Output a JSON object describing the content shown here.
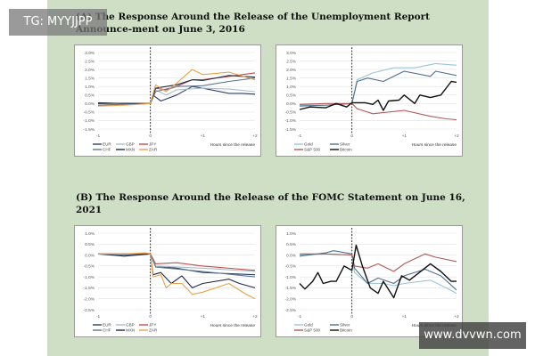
{
  "panel_a": {
    "title": "(A) The Response Around the Release of the Unemployment Report Announce-ment on June 3, 2016"
  },
  "panel_b": {
    "title": "(B) The Response Around the Release of the FOMC Statement on June 16, 2021"
  },
  "watermarks": {
    "top_left": "TG: MYYJJPP",
    "bottom_right": "www.dvvwn.com"
  },
  "chart_data": [
    {
      "id": "a-currencies",
      "type": "line",
      "xlabel": "Hours since the release",
      "xticks": [
        -1,
        0,
        1,
        2
      ],
      "xtick_labels": [
        "-1",
        "0",
        "+1",
        "+2"
      ],
      "ylim": [
        -1.5,
        3.0
      ],
      "yticks": [
        "3.0%",
        "2.5%",
        "2.0%",
        "1.5%",
        "1.0%",
        "0.5%",
        "0.0%",
        "-0.5%",
        "-1.0%",
        "-1.5%"
      ],
      "event_line_x": 0,
      "grid": true,
      "legend": "bottom-left",
      "series": [
        {
          "name": "EUR",
          "color": "#2b3f66",
          "points": [
            [
              -1,
              0.05
            ],
            [
              -0.5,
              0
            ],
            [
              0,
              0
            ],
            [
              0.05,
              0.5
            ],
            [
              0.2,
              0.15
            ],
            [
              0.5,
              0.5
            ],
            [
              0.8,
              1.0
            ],
            [
              1.0,
              0.9
            ],
            [
              1.5,
              0.6
            ],
            [
              1.75,
              0.6
            ],
            [
              2,
              0.55
            ]
          ]
        },
        {
          "name": "GBP",
          "color": "#a9bccc",
          "points": [
            [
              -1,
              -0.1
            ],
            [
              -0.5,
              -0.05
            ],
            [
              0,
              0
            ],
            [
              0.1,
              0.8
            ],
            [
              0.3,
              0.5
            ],
            [
              0.5,
              0.8
            ],
            [
              1.0,
              0.9
            ],
            [
              1.5,
              0.85
            ],
            [
              2,
              0.7
            ]
          ]
        },
        {
          "name": "JPY",
          "color": "#c0504d",
          "points": [
            [
              -1,
              -0.1
            ],
            [
              -0.5,
              -0.05
            ],
            [
              0,
              0
            ],
            [
              0.1,
              0.9
            ],
            [
              0.3,
              0.8
            ],
            [
              0.5,
              1.0
            ],
            [
              0.8,
              1.4
            ],
            [
              1.0,
              1.4
            ],
            [
              1.5,
              1.6
            ],
            [
              2,
              1.8
            ]
          ]
        },
        {
          "name": "CHF",
          "color": "#5f7890",
          "points": [
            [
              -1,
              -0.1
            ],
            [
              -0.5,
              -0.05
            ],
            [
              0,
              0
            ],
            [
              0.1,
              0.7
            ],
            [
              0.5,
              1.0
            ],
            [
              1.0,
              1.05
            ],
            [
              1.5,
              1.3
            ],
            [
              2,
              1.5
            ]
          ]
        },
        {
          "name": "MXN",
          "color": "#1f2a44",
          "points": [
            [
              -1,
              0
            ],
            [
              -0.5,
              0.02
            ],
            [
              0,
              0
            ],
            [
              0.1,
              0.9
            ],
            [
              0.5,
              1.1
            ],
            [
              0.8,
              1.4
            ],
            [
              1.0,
              1.35
            ],
            [
              1.5,
              1.65
            ],
            [
              2,
              1.55
            ]
          ]
        },
        {
          "name": "ZAR",
          "color": "#e8a24a",
          "points": [
            [
              -1,
              -0.15
            ],
            [
              -0.5,
              -0.1
            ],
            [
              0,
              0
            ],
            [
              0.1,
              1.1
            ],
            [
              0.3,
              0.7
            ],
            [
              0.5,
              1.2
            ],
            [
              0.8,
              2.0
            ],
            [
              1.0,
              1.7
            ],
            [
              1.5,
              1.85
            ],
            [
              2,
              1.4
            ]
          ]
        }
      ]
    },
    {
      "id": "a-assets",
      "type": "line",
      "xlabel": "Hours since the release",
      "xticks": [
        -1,
        0,
        1,
        2
      ],
      "xtick_labels": [
        "-1",
        "0",
        "+1",
        "+2"
      ],
      "ylim": [
        -1.5,
        3.0
      ],
      "yticks": [
        "3.0%",
        "2.5%",
        "2.0%",
        "1.5%",
        "1.0%",
        "0.5%",
        "0.0%",
        "-0.5%",
        "-1.0%",
        "-1.5%"
      ],
      "event_line_x": 0,
      "grid": true,
      "legend": "bottom-left",
      "series": [
        {
          "name": "Gold",
          "color": "#9cc3d8",
          "points": [
            [
              -1,
              -0.1
            ],
            [
              -0.5,
              -0.1
            ],
            [
              0,
              0
            ],
            [
              0.1,
              1.4
            ],
            [
              0.4,
              1.8
            ],
            [
              0.8,
              2.1
            ],
            [
              1.2,
              2.1
            ],
            [
              1.6,
              2.35
            ],
            [
              2,
              2.25
            ]
          ]
        },
        {
          "name": "Silver",
          "color": "#4f6f8f",
          "points": [
            [
              -1,
              -0.15
            ],
            [
              -0.5,
              -0.1
            ],
            [
              0,
              0
            ],
            [
              0.1,
              1.3
            ],
            [
              0.3,
              1.5
            ],
            [
              0.6,
              1.3
            ],
            [
              0.8,
              1.6
            ],
            [
              1.0,
              1.9
            ],
            [
              1.5,
              1.6
            ],
            [
              1.6,
              1.9
            ],
            [
              2,
              1.65
            ]
          ]
        },
        {
          "name": "S&P 500",
          "color": "#b05a5a",
          "points": [
            [
              -1,
              -0.05
            ],
            [
              -0.5,
              0
            ],
            [
              0,
              0
            ],
            [
              0.1,
              -0.3
            ],
            [
              0.4,
              -0.6
            ],
            [
              1.0,
              -0.4
            ],
            [
              1.5,
              -0.75
            ],
            [
              1.8,
              -0.9
            ],
            [
              2,
              -0.95
            ]
          ]
        },
        {
          "name": "Bitcoin",
          "color": "#111111",
          "points": [
            [
              -1,
              -0.35
            ],
            [
              -0.8,
              -0.2
            ],
            [
              -0.5,
              -0.25
            ],
            [
              -0.3,
              0
            ],
            [
              -0.1,
              -0.2
            ],
            [
              0,
              0.05
            ],
            [
              0.25,
              0.05
            ],
            [
              0.4,
              -0.05
            ],
            [
              0.5,
              0.2
            ],
            [
              0.6,
              -0.4
            ],
            [
              0.7,
              0.15
            ],
            [
              0.9,
              0.2
            ],
            [
              1.0,
              0.5
            ],
            [
              1.2,
              0
            ],
            [
              1.3,
              0.5
            ],
            [
              1.5,
              0.35
            ],
            [
              1.7,
              0.5
            ],
            [
              1.9,
              1.3
            ],
            [
              2,
              1.25
            ]
          ]
        }
      ]
    },
    {
      "id": "b-currencies",
      "type": "line",
      "xlabel": "Hours since the release",
      "xticks": [
        -1,
        0,
        1,
        2
      ],
      "xtick_labels": [
        "-1",
        "0",
        "+1",
        "+2"
      ],
      "ylim": [
        -2.5,
        1.0
      ],
      "yticks": [
        "1.0%",
        "0.5%",
        "0.0%",
        "-0.5%",
        "-1.0%",
        "-1.5%",
        "-2.0%",
        "-2.5%"
      ],
      "event_line_x": 0,
      "grid": true,
      "legend": "bottom-left",
      "series": [
        {
          "name": "EUR",
          "color": "#2b3f66",
          "points": [
            [
              -1,
              0.05
            ],
            [
              -0.5,
              0.05
            ],
            [
              0,
              0.05
            ],
            [
              0.1,
              -0.5
            ],
            [
              0.5,
              -0.6
            ],
            [
              1.0,
              -0.8
            ],
            [
              2,
              -0.9
            ]
          ]
        },
        {
          "name": "GBP",
          "color": "#a9bccc",
          "points": [
            [
              -1,
              0.05
            ],
            [
              -0.5,
              0.05
            ],
            [
              0,
              0.05
            ],
            [
              0.1,
              -0.5
            ],
            [
              1.0,
              -0.6
            ],
            [
              2,
              -0.75
            ]
          ]
        },
        {
          "name": "JPY",
          "color": "#c0504d",
          "points": [
            [
              -1,
              0.05
            ],
            [
              -0.5,
              0.05
            ],
            [
              0,
              0.05
            ],
            [
              0.1,
              -0.4
            ],
            [
              0.5,
              -0.35
            ],
            [
              1.0,
              -0.5
            ],
            [
              2,
              -0.7
            ]
          ]
        },
        {
          "name": "CHF",
          "color": "#5f7890",
          "points": [
            [
              -1,
              0.05
            ],
            [
              -0.5,
              0
            ],
            [
              0,
              0.05
            ],
            [
              0.1,
              -0.55
            ],
            [
              1.0,
              -0.75
            ],
            [
              2,
              -1.0
            ]
          ]
        },
        {
          "name": "MXN",
          "color": "#1f2a44",
          "points": [
            [
              -1,
              0.05
            ],
            [
              -0.5,
              -0.05
            ],
            [
              0,
              0.05
            ],
            [
              0.05,
              -0.9
            ],
            [
              0.2,
              -0.8
            ],
            [
              0.4,
              -1.3
            ],
            [
              0.6,
              -0.95
            ],
            [
              0.8,
              -1.5
            ],
            [
              1.0,
              -1.3
            ],
            [
              1.5,
              -1.1
            ],
            [
              1.7,
              -1.3
            ],
            [
              2,
              -1.5
            ]
          ]
        },
        {
          "name": "ZAR",
          "color": "#e8a24a",
          "points": [
            [
              -1,
              0.05
            ],
            [
              -0.5,
              0.05
            ],
            [
              -0.1,
              0.1
            ],
            [
              0,
              0.05
            ],
            [
              0.05,
              -1.0
            ],
            [
              0.2,
              -0.9
            ],
            [
              0.3,
              -1.5
            ],
            [
              0.4,
              -1.3
            ],
            [
              0.6,
              -1.3
            ],
            [
              0.8,
              -1.8
            ],
            [
              1.0,
              -1.7
            ],
            [
              1.5,
              -1.3
            ],
            [
              1.8,
              -1.75
            ],
            [
              2,
              -2.0
            ]
          ]
        }
      ]
    },
    {
      "id": "b-assets",
      "type": "line",
      "xlabel": "Hours since the release",
      "xticks": [
        -1,
        0,
        1,
        2
      ],
      "xtick_labels": [
        "-1",
        "0",
        "+1",
        "+2"
      ],
      "ylim": [
        -2.5,
        1.0
      ],
      "yticks": [
        "1.0%",
        "0.5%",
        "0.0%",
        "-0.5%",
        "-1.0%",
        "-1.5%",
        "-2.0%",
        "-2.5%"
      ],
      "event_line_x": 0,
      "grid": true,
      "legend": "bottom-left",
      "series": [
        {
          "name": "Gold",
          "color": "#9cc3d8",
          "points": [
            [
              -1,
              0
            ],
            [
              -0.5,
              0.05
            ],
            [
              0,
              0
            ],
            [
              0.05,
              -0.8
            ],
            [
              0.3,
              -1.3
            ],
            [
              0.6,
              -1.3
            ],
            [
              0.8,
              -1.4
            ],
            [
              1.0,
              -1.3
            ],
            [
              1.5,
              -1.15
            ],
            [
              1.8,
              -1.5
            ],
            [
              2,
              -1.75
            ]
          ]
        },
        {
          "name": "Silver",
          "color": "#4f6f8f",
          "points": [
            [
              -1,
              -0.05
            ],
            [
              -0.5,
              0.1
            ],
            [
              -0.35,
              0.2
            ],
            [
              0,
              0.05
            ],
            [
              0.05,
              -0.6
            ],
            [
              0.3,
              -1.3
            ],
            [
              0.5,
              -1.05
            ],
            [
              0.8,
              -1.3
            ],
            [
              1.0,
              -0.95
            ],
            [
              1.4,
              -0.65
            ],
            [
              1.7,
              -0.95
            ],
            [
              2,
              -1.6
            ]
          ]
        },
        {
          "name": "S&P 500",
          "color": "#b05a5a",
          "points": [
            [
              -1,
              0.05
            ],
            [
              -0.5,
              0.05
            ],
            [
              0,
              0
            ],
            [
              0.05,
              -0.5
            ],
            [
              0.3,
              -0.6
            ],
            [
              0.5,
              -0.4
            ],
            [
              0.8,
              -0.75
            ],
            [
              1.0,
              -0.4
            ],
            [
              1.4,
              0.05
            ],
            [
              1.6,
              -0.1
            ],
            [
              2,
              -0.3
            ]
          ]
        },
        {
          "name": "Bitcoin",
          "color": "#111111",
          "points": [
            [
              -1,
              -1.3
            ],
            [
              -0.9,
              -1.55
            ],
            [
              -0.75,
              -1.2
            ],
            [
              -0.65,
              -0.8
            ],
            [
              -0.55,
              -1.3
            ],
            [
              -0.4,
              -1.2
            ],
            [
              -0.3,
              -1.2
            ],
            [
              -0.15,
              -0.5
            ],
            [
              0,
              -0.7
            ],
            [
              0.08,
              0.45
            ],
            [
              0.2,
              -0.5
            ],
            [
              0.35,
              -1.5
            ],
            [
              0.5,
              -1.75
            ],
            [
              0.6,
              -1.2
            ],
            [
              0.8,
              -1.95
            ],
            [
              0.95,
              -0.95
            ],
            [
              1.1,
              -1.15
            ],
            [
              1.5,
              -0.4
            ],
            [
              1.7,
              -0.75
            ],
            [
              1.9,
              -1.2
            ],
            [
              2,
              -1.2
            ]
          ]
        }
      ]
    }
  ]
}
